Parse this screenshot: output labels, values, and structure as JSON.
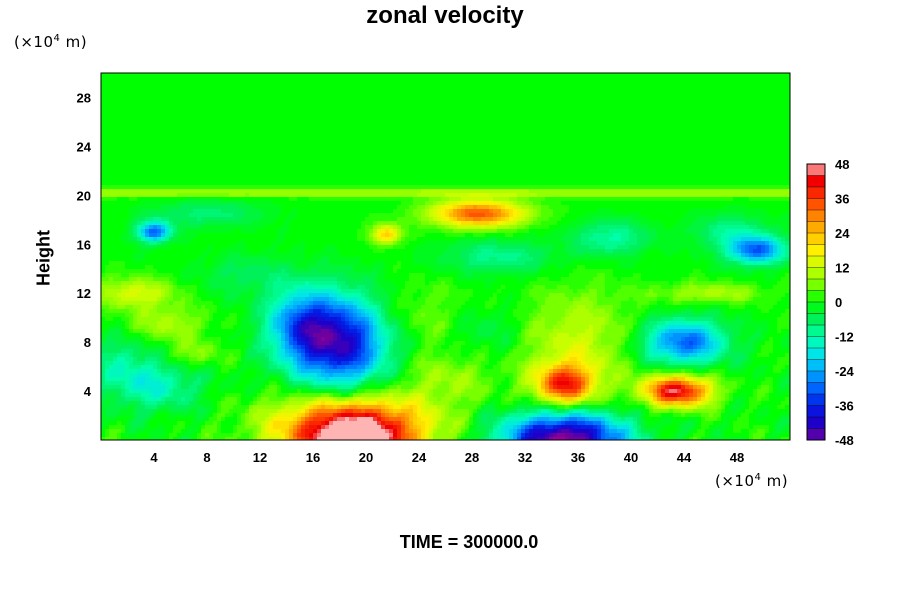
{
  "chart_data": {
    "type": "heatmap",
    "title": "zonal velocity",
    "ylabel": "Height",
    "unit_y": "(×10",
    "unit_x": "(×10",
    "unit_exp": "4",
    "unit_tail": " m)",
    "xlim": [
      0,
      52
    ],
    "ylim": [
      0,
      30
    ],
    "x_ticks": [
      "4",
      "8",
      "12",
      "16",
      "20",
      "24",
      "28",
      "32",
      "36",
      "40",
      "44",
      "48"
    ],
    "y_ticks": [
      "4",
      "8",
      "12",
      "16",
      "20",
      "24",
      "28"
    ],
    "colorbar": {
      "min": -48,
      "max": 48,
      "step": 4,
      "tick_labels": [
        "48",
        "36",
        "24",
        "12",
        "0",
        "-12",
        "-24",
        "-36",
        "-48"
      ]
    },
    "background_value": 0,
    "anomalies": [
      {
        "x": 2.5,
        "y": 12.0,
        "v": 14,
        "sx": 2.2,
        "sy": 0.9
      },
      {
        "x": 5.0,
        "y": 9.5,
        "v": 10,
        "sx": 2.0,
        "sy": 1.0
      },
      {
        "x": 7.0,
        "y": 7.0,
        "v": 8,
        "sx": 1.5,
        "sy": 0.8
      },
      {
        "x": 4.0,
        "y": 4.5,
        "v": -14,
        "sx": 2.5,
        "sy": 1.5
      },
      {
        "x": 1.5,
        "y": 6.5,
        "v": -8,
        "sx": 1.5,
        "sy": 1.5
      },
      {
        "x": 4.0,
        "y": 17.0,
        "v": -30,
        "sx": 0.9,
        "sy": 0.6
      },
      {
        "x": 8.0,
        "y": 18.5,
        "v": -8,
        "sx": 3.0,
        "sy": 0.8
      },
      {
        "x": 18.0,
        "y": 8.0,
        "v": -42,
        "sx": 2.6,
        "sy": 2.6
      },
      {
        "x": 15.0,
        "y": 9.5,
        "v": -20,
        "sx": 1.8,
        "sy": 2.0
      },
      {
        "x": 19.0,
        "y": 0.0,
        "v": 52,
        "sx": 3.5,
        "sy": 1.8
      },
      {
        "x": 19.0,
        "y": 2.0,
        "v": 16,
        "sx": 4.5,
        "sy": 1.5
      },
      {
        "x": 35.0,
        "y": 0.0,
        "v": -52,
        "sx": 3.2,
        "sy": 1.6
      },
      {
        "x": 35.0,
        "y": 4.5,
        "v": 36,
        "sx": 1.6,
        "sy": 1.2
      },
      {
        "x": 36.0,
        "y": 8.0,
        "v": 12,
        "sx": 3.0,
        "sy": 3.0
      },
      {
        "x": 43.5,
        "y": 4.0,
        "v": 44,
        "sx": 1.8,
        "sy": 0.9
      },
      {
        "x": 44.0,
        "y": 8.0,
        "v": -30,
        "sx": 2.2,
        "sy": 1.3
      },
      {
        "x": 49.5,
        "y": 15.5,
        "v": -30,
        "sx": 1.5,
        "sy": 0.8
      },
      {
        "x": 47.5,
        "y": 17.0,
        "v": -10,
        "sx": 2.0,
        "sy": 1.0
      },
      {
        "x": 28.5,
        "y": 18.5,
        "v": 34,
        "sx": 2.5,
        "sy": 0.8
      },
      {
        "x": 21.5,
        "y": 16.8,
        "v": 22,
        "sx": 0.8,
        "sy": 0.6
      },
      {
        "x": 30.0,
        "y": 15.0,
        "v": -10,
        "sx": 3.0,
        "sy": 1.0
      },
      {
        "x": 26.0,
        "y": 5.0,
        "v": 8,
        "sx": 2.5,
        "sy": 1.5
      },
      {
        "x": 38.5,
        "y": 16.5,
        "v": -12,
        "sx": 2.0,
        "sy": 1.0
      },
      {
        "x": 24.0,
        "y": 10.0,
        "v": 6,
        "sx": 3.0,
        "sy": 2.0
      },
      {
        "x": 46.0,
        "y": 12.0,
        "v": 10,
        "sx": 3.0,
        "sy": 0.6
      },
      {
        "x": 29.0,
        "y": 9.0,
        "v": -6,
        "sx": 2.0,
        "sy": 1.5
      },
      {
        "x": 11.0,
        "y": 13.5,
        "v": -6,
        "sx": 2.5,
        "sy": 1.2
      }
    ],
    "band": {
      "y": 20.2,
      "v": 10,
      "sy": 0.25
    },
    "undisturbed_above": 21.5,
    "time_label": "TIME = 300000.0",
    "grid": false,
    "legend": "colorbar-right"
  }
}
